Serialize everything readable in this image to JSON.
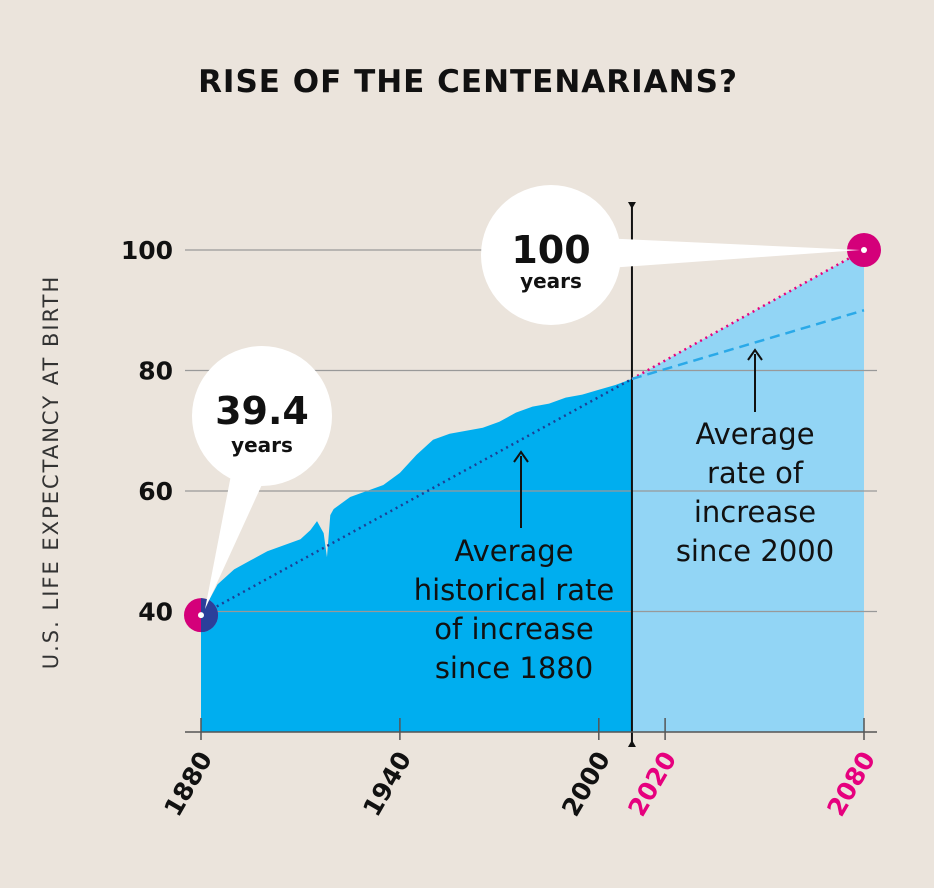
{
  "chart_data": {
    "type": "area",
    "title": "RISE OF THE CENTENARIANS?",
    "ylabel": "U.S. LIFE EXPECTANCY AT BIRTH",
    "xlabel": "",
    "xlim": [
      1880,
      2080
    ],
    "ylim": [
      20,
      100
    ],
    "y_ticks": [
      40,
      60,
      80,
      100
    ],
    "x_ticks": [
      {
        "value": 1880,
        "label": "1880",
        "highlight": false
      },
      {
        "value": 1940,
        "label": "1940",
        "highlight": false
      },
      {
        "value": 2000,
        "label": "2000",
        "highlight": false
      },
      {
        "value": 2020,
        "label": "2020",
        "highlight": true
      },
      {
        "value": 2080,
        "label": "2080",
        "highlight": true
      }
    ],
    "grid": true,
    "divider_year": 2010,
    "series": [
      {
        "x": [
          1880,
          1885,
          1890,
          1895,
          1900,
          1905,
          1910,
          1913,
          1915,
          1917,
          1918,
          1919,
          1920,
          1925,
          1930,
          1935,
          1940,
          1945,
          1950,
          1955,
          1960,
          1965,
          1970,
          1975,
          1980,
          1985,
          1990,
          1995,
          2000,
          2005,
          2010
        ],
        "values": [
          39.4,
          44.5,
          47,
          48.5,
          50,
          51,
          52,
          53.5,
          55,
          53,
          49,
          56,
          57,
          59,
          60,
          61,
          63,
          66,
          68.5,
          69.5,
          70,
          70.5,
          71.5,
          73,
          74,
          74.5,
          75.5,
          76,
          76.8,
          77.6,
          78.6
        ]
      },
      {
        "x": [
          2010,
          2080
        ],
        "values": [
          78.6,
          100
        ]
      }
    ],
    "trend_lines": [
      {
        "name": "Average historical rate of increase since 1880",
        "x": [
          1880,
          2080
        ],
        "values": [
          39.4,
          100
        ]
      },
      {
        "name": "Average rate of increase since 2000",
        "x": [
          2000,
          2080
        ],
        "values": [
          76.8,
          90
        ]
      }
    ],
    "callouts": [
      {
        "value": "39.4",
        "unit": "years",
        "x": 1880,
        "y": 39.4
      },
      {
        "value": "100",
        "unit": "years",
        "x": 2080,
        "y": 100
      }
    ],
    "annotations": [
      {
        "lines": [
          "Average",
          "historical rate",
          "of increase",
          "since 1880"
        ]
      },
      {
        "lines": [
          "Average",
          "rate of",
          "increase",
          "since 2000"
        ]
      }
    ],
    "colors": {
      "background": "#ebe4dc",
      "historical_fill": "#00aeef",
      "projection_fill": "#92d5f5",
      "trend_historical": "#1c3f94",
      "trend_recent": "#2aa9e8",
      "projection_line": "#e6007e",
      "marker_outer": "#d4007a",
      "marker_inner": "#2b3f9a",
      "highlight_text": "#e6007e",
      "grid": "#999999",
      "text": "#111111"
    }
  }
}
